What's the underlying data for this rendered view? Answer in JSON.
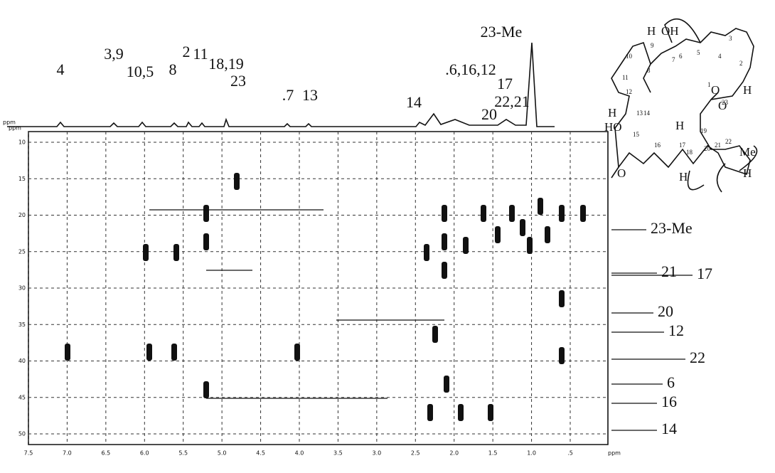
{
  "spectrum_1h": {
    "axis_label": "ppm",
    "peak_labels": [
      "4",
      "3,9",
      "10,5",
      "8",
      "2",
      "11",
      "18,19",
      "23",
      ".7",
      "13",
      "14",
      ".6,16,12",
      "17",
      "20",
      "22,21",
      "23-Me"
    ]
  },
  "plot": {
    "y_axis_label": "ppm",
    "x_axis_label": "ppm",
    "y_ticks": [
      "10",
      "15",
      "20",
      "25",
      "30",
      "35",
      "40",
      "45",
      "50"
    ],
    "x_ticks": [
      "7.5",
      "7.0",
      "6.5",
      "6.0",
      "5.5",
      "5.0",
      "4.5",
      "4.0",
      "3.5",
      "3.0",
      "2.5",
      "2.0",
      "1.5",
      "1.0",
      ".5"
    ]
  },
  "carbon_labels": [
    "23-Me",
    "21",
    "17",
    "20",
    "12",
    "22",
    "6",
    "16",
    "14"
  ],
  "structure": {
    "atom_numbers": [
      "1",
      "2",
      "3",
      "4",
      "5",
      "6",
      "7",
      "8",
      "9",
      "10",
      "11",
      "12",
      "13",
      "14",
      "15",
      "16",
      "17",
      "18",
      "19",
      "20",
      "21",
      "22",
      "23"
    ],
    "groups": [
      "H",
      "OH",
      "H",
      "HO",
      "O",
      "O",
      "O",
      "Me",
      "H",
      "H",
      "H",
      "H"
    ]
  }
}
